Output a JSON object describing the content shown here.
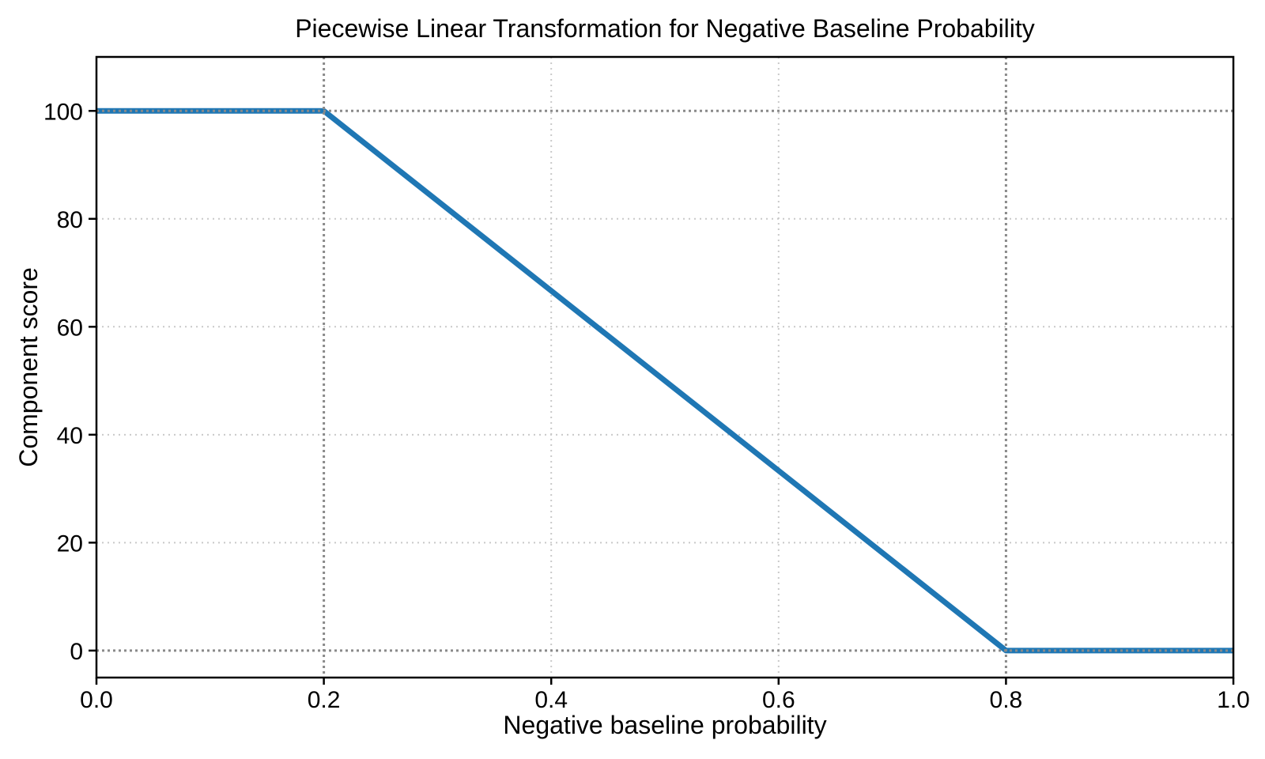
{
  "figure": {
    "background_color": "#ffffff"
  },
  "chart_data": {
    "type": "line",
    "title": "Piecewise Linear Transformation for Negative Baseline Probability",
    "xlabel": "Negative baseline probability",
    "ylabel": "Component score",
    "xlim": [
      0.0,
      1.0
    ],
    "ylim": [
      -5,
      110
    ],
    "xticks": {
      "values": [
        0.0,
        0.2,
        0.4,
        0.6,
        0.8,
        1.0
      ],
      "labels": [
        "0.0",
        "0.2",
        "0.4",
        "0.6",
        "0.8",
        "1.0"
      ]
    },
    "yticks": {
      "values": [
        0,
        20,
        40,
        60,
        80,
        100
      ],
      "labels": [
        "0",
        "20",
        "40",
        "60",
        "80",
        "100"
      ]
    },
    "grid": {
      "visible": true,
      "linestyle": "dotted",
      "color": "#c9c9c9"
    },
    "reference_lines": {
      "x": [
        0.2,
        0.8
      ],
      "y": [
        0,
        100
      ],
      "linestyle": "dotted",
      "color": "#8a8a8a"
    },
    "series": [
      {
        "name": "Component score",
        "color": "#1f77b4",
        "points": [
          {
            "x": 0.0,
            "y": 100
          },
          {
            "x": 0.2,
            "y": 100
          },
          {
            "x": 0.8,
            "y": 0
          },
          {
            "x": 1.0,
            "y": 0
          }
        ]
      }
    ],
    "legend": {
      "visible": false
    },
    "axis_color": "#000000"
  }
}
